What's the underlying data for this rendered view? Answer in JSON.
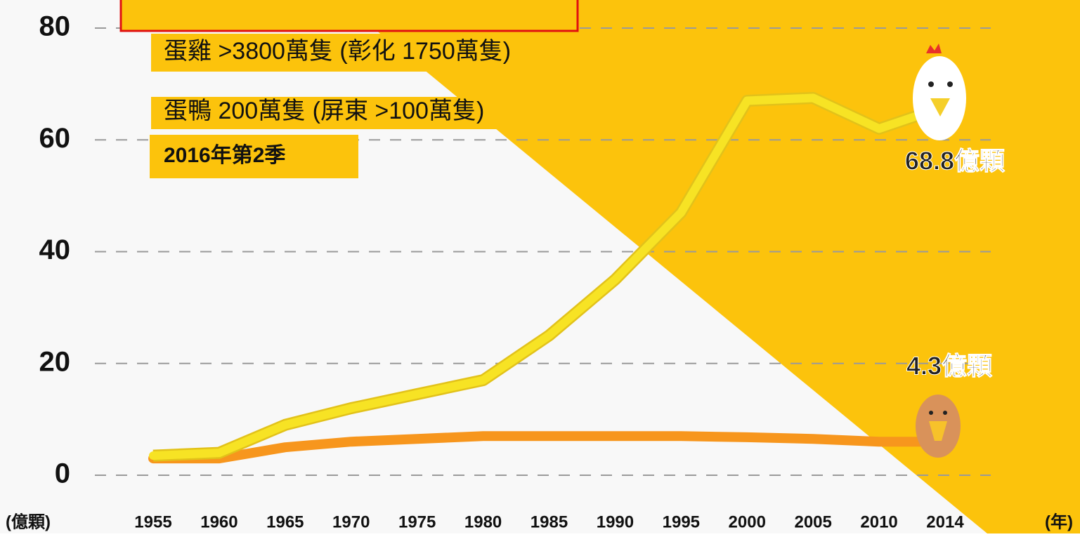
{
  "chart_data": {
    "type": "line",
    "categories": [
      "1955",
      "1960",
      "1965",
      "1970",
      "1975",
      "1980",
      "1985",
      "1990",
      "1995",
      "2000",
      "2005",
      "2010",
      "2014"
    ],
    "series": [
      {
        "color": "#f7e324",
        "values": [
          3.5,
          4,
          9,
          12,
          14.5,
          17,
          25,
          35,
          47,
          67,
          67.5,
          62,
          66
        ]
      },
      {
        "color": "#f7961d",
        "values": [
          3,
          3,
          5,
          6,
          6.5,
          7,
          7,
          7,
          7,
          6.8,
          6.5,
          6,
          6
        ]
      }
    ],
    "ylim": [
      0,
      80
    ],
    "yticks": [
      0,
      20,
      40,
      60,
      80
    ],
    "grid": true,
    "xlabel": "(年)",
    "ylabel": "(億顆)",
    "annotations": [
      "蛋雞 >3800萬隻 (彰化 1750萬隻)",
      "蛋鴨  200萬隻  (屏東 >100萬隻)",
      "2016年第2季",
      "68.8億顆",
      "4.3億顆"
    ]
  }
}
